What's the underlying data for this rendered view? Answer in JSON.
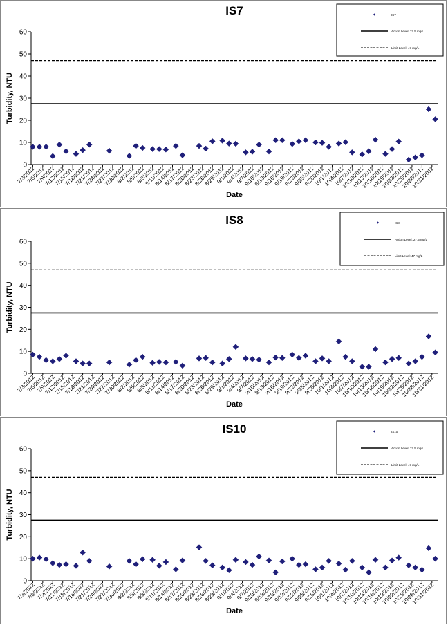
{
  "colors": {
    "marker": "#1f1f7a",
    "line": "#000000"
  },
  "chart_data": [
    {
      "type": "scatter",
      "title": "IS7",
      "xlabel": "Date",
      "ylabel": "Turbidity, NTU",
      "ylim": [
        0,
        60
      ],
      "yticks": [
        0,
        10,
        20,
        30,
        40,
        50,
        60
      ],
      "xtick_labels": [
        "7/3/2012",
        "7/6/2012",
        "7/9/2012",
        "7/12/2012",
        "7/15/2012",
        "7/18/2012",
        "7/21/2012",
        "7/24/2012",
        "7/27/2012",
        "7/30/2012",
        "8/2/2012",
        "8/5/2012",
        "8/8/2012",
        "8/11/2012",
        "8/14/2012",
        "8/17/2012",
        "8/20/2012",
        "8/23/2012",
        "8/26/2012",
        "8/29/2012",
        "9/1/2012",
        "9/4/2012",
        "9/7/2012",
        "9/10/2012",
        "9/13/2012",
        "9/16/2012",
        "9/19/2012",
        "9/22/2012",
        "9/25/2012",
        "9/28/2012",
        "10/1/2012",
        "10/4/2012",
        "10/7/2012",
        "10/10/2012",
        "10/13/2012",
        "10/16/2012",
        "10/19/2012",
        "10/22/2012",
        "10/25/2012",
        "10/28/2012",
        "10/31/2012"
      ],
      "legend": {
        "placement": "top-right",
        "entries": [
          "IS7",
          "Action Level: 27.5 mg/L",
          "Limit Level: 47 mg/L"
        ]
      },
      "reference_lines": [
        {
          "name": "Action Level: 27.5 mg/L",
          "value": 27.5,
          "style": "solid"
        },
        {
          "name": "Limit Level: 47 mg/L",
          "value": 47,
          "style": "dashed"
        }
      ],
      "series": [
        {
          "name": "IS7",
          "x": [
            "7/3/2012",
            "7/5/2012",
            "7/7/2012",
            "7/9/2012",
            "7/11/2012",
            "7/13/2012",
            "7/16/2012",
            "7/18/2012",
            "7/20/2012",
            "7/26/2012",
            "8/1/2012",
            "8/3/2012",
            "8/5/2012",
            "8/8/2012",
            "8/10/2012",
            "8/12/2012",
            "8/15/2012",
            "8/17/2012",
            "8/22/2012",
            "8/24/2012",
            "8/26/2012",
            "8/29/2012",
            "8/31/2012",
            "9/2/2012",
            "9/5/2012",
            "9/7/2012",
            "9/9/2012",
            "9/12/2012",
            "9/14/2012",
            "9/16/2012",
            "9/19/2012",
            "9/21/2012",
            "9/23/2012",
            "9/26/2012",
            "9/28/2012",
            "9/30/2012",
            "10/3/2012",
            "10/5/2012",
            "10/7/2012",
            "10/10/2012",
            "10/12/2012",
            "10/14/2012",
            "10/17/2012",
            "10/19/2012",
            "10/21/2012",
            "10/24/2012",
            "10/26/2012",
            "10/28/2012",
            "10/30/2012",
            "11/1/2012"
          ],
          "values": [
            8,
            8,
            8,
            3.8,
            9,
            6,
            4.8,
            6.5,
            9,
            6.2,
            3.9,
            8.4,
            7.5,
            7,
            7,
            6.8,
            8.4,
            4.2,
            8.4,
            7.2,
            10.5,
            10.8,
            9.5,
            9.4,
            5.5,
            5.8,
            9,
            5.9,
            11,
            11,
            9.3,
            10.5,
            11,
            10,
            9.8,
            8,
            9.5,
            10.1,
            5.5,
            4.6,
            6,
            11.2,
            4.8,
            7,
            10.4,
            2.2,
            3.2,
            4.2,
            25,
            20.5
          ]
        }
      ]
    },
    {
      "type": "scatter",
      "title": "IS8",
      "xlabel": "Date",
      "ylabel": "Turbidity, NTU",
      "ylim": [
        0,
        60
      ],
      "yticks": [
        0,
        10,
        20,
        30,
        40,
        50,
        60
      ],
      "xtick_labels": [
        "7/3/2012",
        "7/6/2012",
        "7/9/2012",
        "7/12/2012",
        "7/15/2012",
        "7/18/2012",
        "7/21/2012",
        "7/24/2012",
        "7/27/2012",
        "7/30/2012",
        "8/2/2012",
        "8/5/2012",
        "8/8/2012",
        "8/11/2012",
        "8/14/2012",
        "8/17/2012",
        "8/20/2012",
        "8/23/2012",
        "8/26/2012",
        "8/29/2012",
        "9/1/2012",
        "9/4/2012",
        "9/7/2012",
        "9/10/2012",
        "9/13/2012",
        "9/16/2012",
        "9/19/2012",
        "9/22/2012",
        "9/25/2012",
        "9/28/2012",
        "10/1/2012",
        "10/4/2012",
        "10/7/2012",
        "10/10/2012",
        "10/13/2012",
        "10/16/2012",
        "10/19/2012",
        "10/22/2012",
        "10/25/2012",
        "10/28/2012",
        "10/31/2012"
      ],
      "legend": {
        "placement": "top-right",
        "entries": [
          "IS8",
          "Action Level: 27.5 mg/L",
          "Limit Level: 47 mg/L"
        ]
      },
      "reference_lines": [
        {
          "name": "Action Level: 27.5 mg/L",
          "value": 27.5,
          "style": "solid"
        },
        {
          "name": "Limit Level: 47 mg/L",
          "value": 47,
          "style": "dashed"
        }
      ],
      "series": [
        {
          "name": "IS8",
          "x": [
            "7/3/2012",
            "7/5/2012",
            "7/7/2012",
            "7/9/2012",
            "7/11/2012",
            "7/13/2012",
            "7/16/2012",
            "7/18/2012",
            "7/20/2012",
            "7/26/2012",
            "8/1/2012",
            "8/3/2012",
            "8/5/2012",
            "8/8/2012",
            "8/10/2012",
            "8/12/2012",
            "8/15/2012",
            "8/17/2012",
            "8/22/2012",
            "8/24/2012",
            "8/26/2012",
            "8/29/2012",
            "8/31/2012",
            "9/2/2012",
            "9/5/2012",
            "9/7/2012",
            "9/9/2012",
            "9/12/2012",
            "9/14/2012",
            "9/16/2012",
            "9/19/2012",
            "9/21/2012",
            "9/23/2012",
            "9/26/2012",
            "9/28/2012",
            "9/30/2012",
            "10/3/2012",
            "10/5/2012",
            "10/7/2012",
            "10/10/2012",
            "10/12/2012",
            "10/14/2012",
            "10/17/2012",
            "10/19/2012",
            "10/21/2012",
            "10/24/2012",
            "10/26/2012",
            "10/28/2012",
            "10/30/2012",
            "11/1/2012"
          ],
          "values": [
            8.5,
            7.5,
            6,
            5.5,
            6.5,
            8,
            5.5,
            4.5,
            4.5,
            5,
            4,
            6,
            7.5,
            4.8,
            5.2,
            5,
            5.2,
            3.5,
            6.8,
            7,
            5,
            4.5,
            6.5,
            12,
            6.8,
            6.5,
            6.2,
            5,
            7.2,
            7,
            8.5,
            7,
            8,
            5.5,
            6.8,
            5.5,
            14.5,
            7.5,
            5.5,
            3,
            3,
            11,
            5,
            6.5,
            7,
            4.5,
            5.5,
            7.5,
            16.8,
            9.5
          ]
        }
      ]
    },
    {
      "type": "scatter",
      "title": "IS10",
      "xlabel": "Date",
      "ylabel": "Turbidity, NTU",
      "ylim": [
        0,
        60
      ],
      "yticks": [
        0,
        10,
        20,
        30,
        40,
        50,
        60
      ],
      "xtick_labels": [
        "7/3/2012",
        "7/6/2012",
        "7/9/2012",
        "7/12/2012",
        "7/15/2012",
        "7/18/2012",
        "7/21/2012",
        "7/24/2012",
        "7/27/2012",
        "7/30/2012",
        "8/2/2012",
        "8/5/2012",
        "8/8/2012",
        "8/11/2012",
        "8/14/2012",
        "8/17/2012",
        "8/20/2012",
        "8/23/2012",
        "8/26/2012",
        "8/29/2012",
        "9/1/2012",
        "9/4/2012",
        "9/7/2012",
        "9/10/2012",
        "9/13/2012",
        "9/16/2012",
        "9/19/2012",
        "9/22/2012",
        "9/25/2012",
        "9/28/2012",
        "10/1/2012",
        "10/4/2012",
        "10/7/2012",
        "10/10/2012",
        "10/13/2012",
        "10/16/2012",
        "10/19/2012",
        "10/22/2012",
        "10/25/2012",
        "10/28/2012",
        "10/31/2012"
      ],
      "legend": {
        "placement": "top-right",
        "entries": [
          "IS10",
          "Action Level: 27.5 mg/L",
          "Limit Level: 47 mg/L"
        ]
      },
      "reference_lines": [
        {
          "name": "Action Level: 27.5 mg/L",
          "value": 27.5,
          "style": "solid"
        },
        {
          "name": "Limit Level: 47 mg/L",
          "value": 47,
          "style": "dashed"
        }
      ],
      "series": [
        {
          "name": "IS10",
          "x": [
            "7/3/2012",
            "7/5/2012",
            "7/7/2012",
            "7/9/2012",
            "7/11/2012",
            "7/13/2012",
            "7/16/2012",
            "7/18/2012",
            "7/20/2012",
            "7/26/2012",
            "8/1/2012",
            "8/3/2012",
            "8/5/2012",
            "8/8/2012",
            "8/10/2012",
            "8/12/2012",
            "8/15/2012",
            "8/17/2012",
            "8/22/2012",
            "8/24/2012",
            "8/26/2012",
            "8/29/2012",
            "8/31/2012",
            "9/2/2012",
            "9/5/2012",
            "9/7/2012",
            "9/9/2012",
            "9/12/2012",
            "9/14/2012",
            "9/16/2012",
            "9/19/2012",
            "9/21/2012",
            "9/23/2012",
            "9/26/2012",
            "9/28/2012",
            "9/30/2012",
            "10/3/2012",
            "10/5/2012",
            "10/7/2012",
            "10/10/2012",
            "10/12/2012",
            "10/14/2012",
            "10/17/2012",
            "10/19/2012",
            "10/21/2012",
            "10/24/2012",
            "10/26/2012",
            "10/28/2012",
            "10/30/2012",
            "11/1/2012"
          ],
          "values": [
            10,
            10.5,
            9.8,
            8,
            7.2,
            7.5,
            6.8,
            12.8,
            9,
            6.5,
            9,
            7.5,
            9.8,
            9.5,
            6.8,
            8.5,
            5.2,
            9.2,
            15.2,
            9,
            7,
            6,
            4.8,
            9.5,
            8.5,
            7.2,
            11,
            9.2,
            3.8,
            8.8,
            10,
            7.2,
            7.5,
            5.2,
            6,
            9,
            7.8,
            5,
            9,
            6,
            3.8,
            9.5,
            6,
            9.2,
            10.5,
            7,
            6,
            5,
            14.8,
            10
          ]
        }
      ]
    }
  ]
}
